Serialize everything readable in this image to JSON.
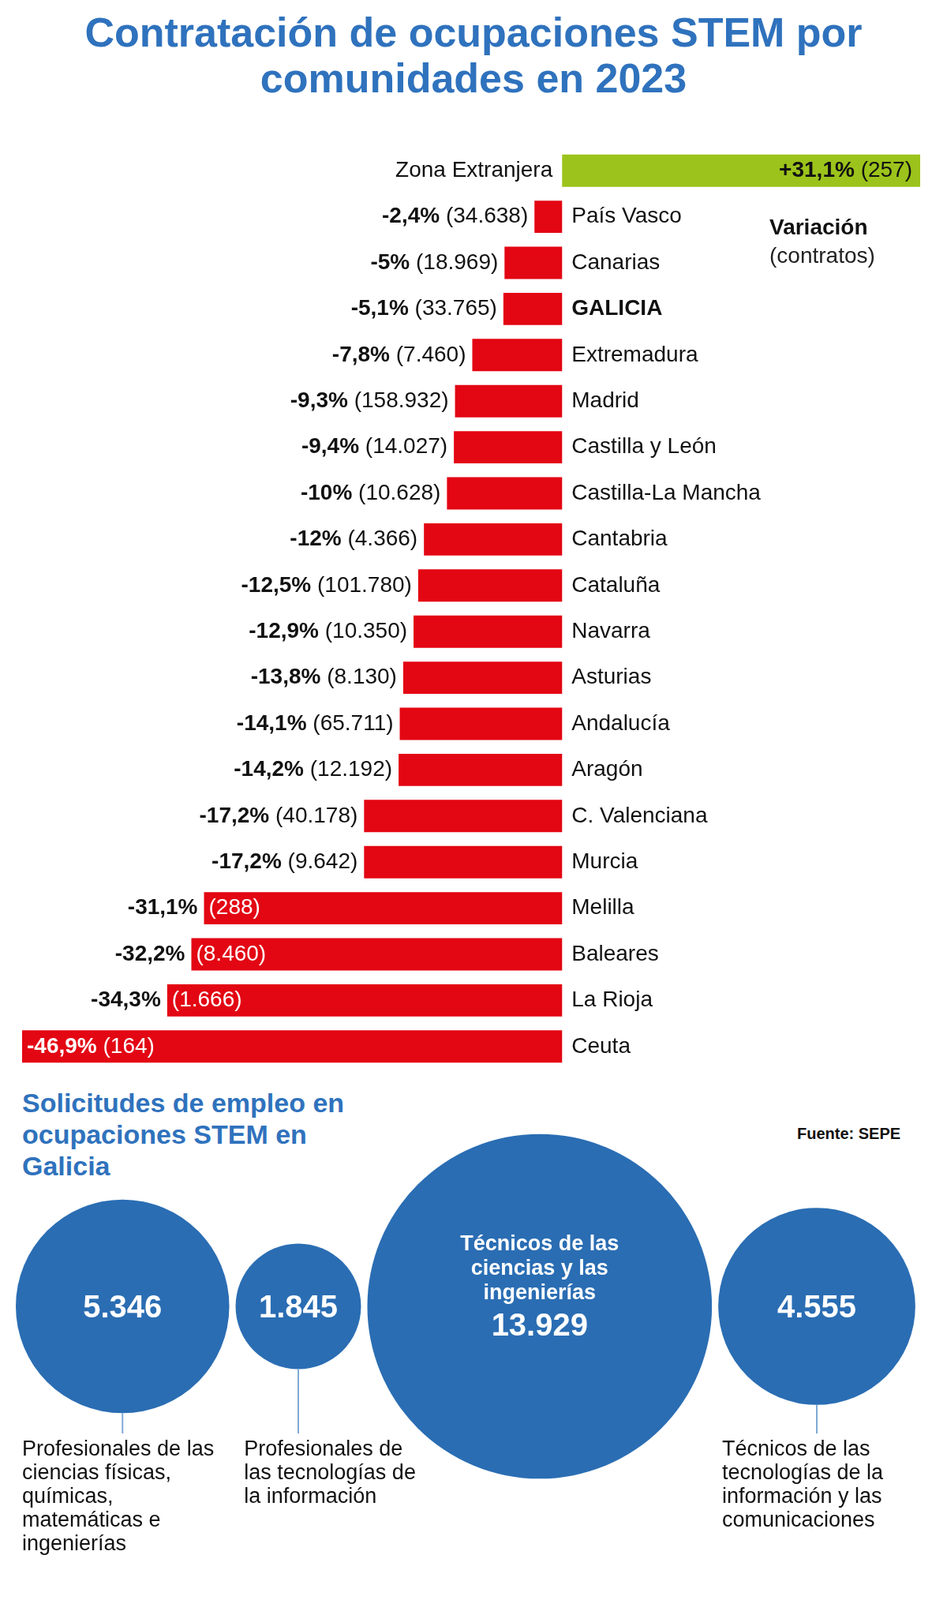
{
  "chart_data": [
    {
      "type": "bar",
      "title": "Contratación de ocupaciones STEM por comunidades en 2023",
      "orientation": "horizontal",
      "categories": [
        "Zona Extranjera",
        "País Vasco",
        "Canarias",
        "GALICIA",
        "Extremadura",
        "Madrid",
        "Castilla y León",
        "Castilla-La Mancha",
        "Cantabria",
        "Cataluña",
        "Navarra",
        "Asturias",
        "Andalucía",
        "Aragón",
        "C. Valenciana",
        "Murcia",
        "Melilla",
        "Baleares",
        "La Rioja",
        "Ceuta"
      ],
      "values": [
        31.1,
        -2.4,
        -5,
        -5.1,
        -7.8,
        -9.3,
        -9.4,
        -10,
        -12,
        -12.5,
        -12.9,
        -13.8,
        -14.1,
        -14.2,
        -17.2,
        -17.2,
        -31.1,
        -32.2,
        -34.3,
        -46.9
      ],
      "value_labels": [
        "+31,1%",
        "-2,4%",
        "-5%",
        "-5,1%",
        "-7,8%",
        "-9,3%",
        "-9,4%",
        "-10%",
        "-12%",
        "-12,5%",
        "-12,9%",
        "-13,8%",
        "-14,1%",
        "-14,2%",
        "-17,2%",
        "-17,2%",
        "-31,1%",
        "-32,2%",
        "-34,3%",
        "-46,9%"
      ],
      "contracts": [
        257,
        34638,
        18969,
        33765,
        7460,
        158932,
        14027,
        10628,
        4366,
        101780,
        10350,
        8130,
        65711,
        12192,
        40178,
        9642,
        288,
        8460,
        1666,
        164
      ],
      "contract_labels": [
        "(257)",
        "(34.638)",
        "(18.969)",
        "(33.765)",
        "(7.460)",
        "(158.932)",
        "(14.027)",
        "(10.628)",
        "(4.366)",
        "(101.780)",
        "(10.350)",
        "(8.130)",
        "(65.711)",
        "(12.192)",
        "(40.178)",
        "(9.642)",
        "(288)",
        "(8.460)",
        "(1.666)",
        "(164)"
      ],
      "colors": [
        "#9cc31b",
        "#e30613",
        "#e30613",
        "#e30613",
        "#e30613",
        "#e30613",
        "#e30613",
        "#e30613",
        "#e30613",
        "#e30613",
        "#e30613",
        "#e30613",
        "#e30613",
        "#e30613",
        "#e30613",
        "#e30613",
        "#e30613",
        "#e30613",
        "#e30613",
        "#e30613"
      ],
      "xlim": [
        -46.9,
        31.1
      ],
      "grid": false,
      "tick_labels": false,
      "data_labels": true,
      "annotations": [
        "Variación",
        "(contratos)",
        "Fuente: SEPE"
      ]
    },
    {
      "type": "bubble",
      "title": "Solicitudes de empleo en ocupaciones STEM en Galicia",
      "categories": [
        "Profesionales de las ciencias físicas, químicas, matemáticas e ingenierías",
        "Profesionales de las tecnologías de la información",
        "Técnicos de las ciencias y las ingenierías",
        "Técnicos de las tecnologías de la información y las comunicaciones"
      ],
      "values": [
        5346,
        1845,
        13929,
        4555
      ],
      "value_labels": [
        "5.346",
        "1.845",
        "13.929",
        "4.555"
      ],
      "color": "#2a6db3"
    }
  ]
}
